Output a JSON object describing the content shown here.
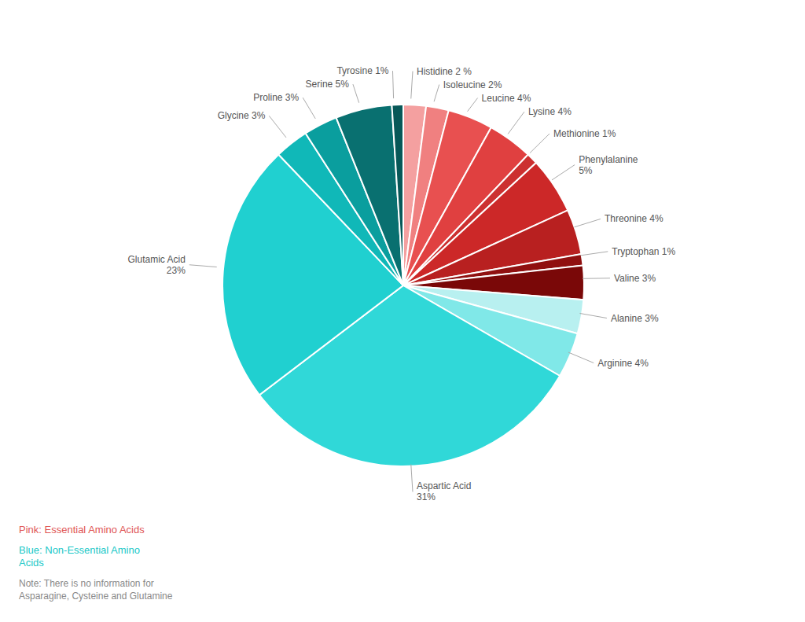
{
  "chart_data": {
    "type": "pie",
    "categories": [
      "Histidine 2 %",
      "Isoleucine 2%",
      "Leucine 4%",
      "Lysine 4%",
      "Methionine 1%",
      "Phenylalanine\n5%",
      "Threonine 4%",
      "Tryptophan 1%",
      "Valine 3%",
      "Alanine 3%",
      "Arginine 4%",
      "Aspartic Acid\n31%",
      "Glutamic Acid\n23%",
      "Glycine 3%",
      "Proline 3%",
      "Serine 5%",
      "Tyrosine 1%"
    ],
    "values": [
      2,
      2,
      4,
      4,
      1,
      5,
      4,
      1,
      3,
      3,
      4,
      31,
      23,
      3,
      3,
      5,
      1
    ],
    "colors": [
      "#F4A0A0",
      "#F08080",
      "#E85050",
      "#E04040",
      "#CC3030",
      "#CC2828",
      "#B82020",
      "#901010",
      "#7A0808",
      "#B8F0F0",
      "#80E8E8",
      "#30D8D8",
      "#20D0D0",
      "#10B8B8",
      "#0A9E9E",
      "#097070",
      "#075858"
    ],
    "annotations": [
      {
        "text": "Pink: Essential Amino Acids",
        "color": "#e05555"
      },
      {
        "text": "Blue: Non-Essential Amino\nAcids",
        "color": "#20c8c8"
      },
      {
        "text": "Note: There is no information for\nAsparagine, Cysteine and Glutamine",
        "color": "#888888"
      }
    ]
  }
}
